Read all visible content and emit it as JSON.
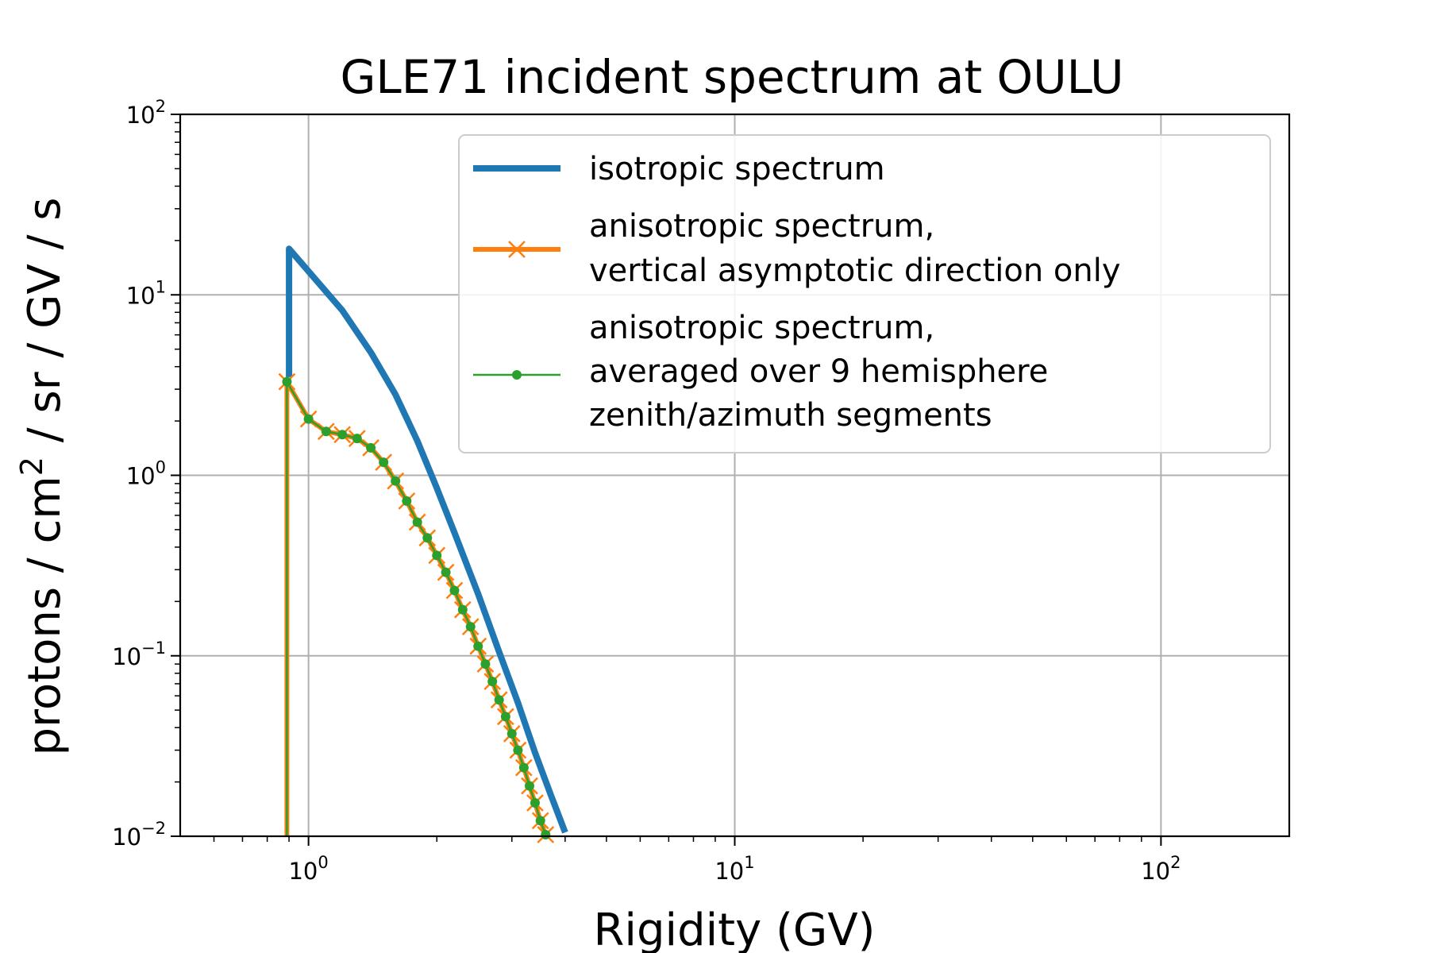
{
  "chart_data": {
    "type": "line",
    "title": "GLE71 incident spectrum at OULU",
    "xlabel": "Rigidity (GV)",
    "ylabel": "protons / cm² / sr / GV / s",
    "x_scale": "log",
    "y_scale": "log",
    "xlim": [
      0.5,
      200
    ],
    "ylim": [
      0.01,
      100
    ],
    "grid": true,
    "legend_position": "top-right",
    "x_ticks": [
      {
        "value": 1,
        "base": "10",
        "exp": "0"
      },
      {
        "value": 10,
        "base": "10",
        "exp": "1"
      },
      {
        "value": 100,
        "base": "10",
        "exp": "2"
      }
    ],
    "y_ticks": [
      {
        "value": 0.01,
        "base": "10",
        "exp": "−2"
      },
      {
        "value": 0.1,
        "base": "10",
        "exp": "−1"
      },
      {
        "value": 1,
        "base": "10",
        "exp": "0"
      },
      {
        "value": 10,
        "base": "10",
        "exp": "1"
      },
      {
        "value": 100,
        "base": "10",
        "exp": "2"
      }
    ],
    "series": [
      {
        "name": "isotropic spectrum",
        "color": "#1f77b4",
        "marker": "none",
        "x": [
          0.9,
          0.9,
          1.0,
          1.2,
          1.4,
          1.6,
          1.8,
          2.0,
          2.2,
          2.5,
          2.8,
          3.1,
          3.4,
          3.7,
          4.0
        ],
        "y": [
          3.5,
          18.0,
          13.5,
          8.2,
          4.8,
          2.8,
          1.55,
          0.85,
          0.48,
          0.22,
          0.105,
          0.055,
          0.029,
          0.017,
          0.0105
        ]
      },
      {
        "name": "anisotropic spectrum,\nvertical asymptotic direction only",
        "color": "#ff7f0e",
        "marker": "x",
        "x": [
          0.89,
          0.89,
          1.0,
          1.1,
          1.2,
          1.3,
          1.4,
          1.5,
          1.6,
          1.7,
          1.8,
          1.9,
          2.0,
          2.1,
          2.2,
          2.3,
          2.4,
          2.5,
          2.6,
          2.7,
          2.8,
          2.9,
          3.0,
          3.1,
          3.2,
          3.3,
          3.4,
          3.5,
          3.6
        ],
        "y": [
          0.01,
          3.3,
          2.05,
          1.75,
          1.68,
          1.6,
          1.42,
          1.18,
          0.93,
          0.72,
          0.55,
          0.45,
          0.36,
          0.29,
          0.23,
          0.18,
          0.145,
          0.113,
          0.09,
          0.072,
          0.057,
          0.046,
          0.037,
          0.03,
          0.024,
          0.019,
          0.0153,
          0.0122,
          0.0102
        ]
      },
      {
        "name": "anisotropic spectrum,\naveraged over 9 hemisphere\nzenith/azimuth segments",
        "color": "#2ca02c",
        "marker": "o",
        "x": [
          0.89,
          0.89,
          1.0,
          1.1,
          1.2,
          1.3,
          1.4,
          1.5,
          1.6,
          1.7,
          1.8,
          1.9,
          2.0,
          2.1,
          2.2,
          2.3,
          2.4,
          2.5,
          2.6,
          2.7,
          2.8,
          2.9,
          3.0,
          3.1,
          3.2,
          3.3,
          3.4,
          3.5,
          3.6
        ],
        "y": [
          0.01,
          3.3,
          2.05,
          1.75,
          1.68,
          1.6,
          1.42,
          1.18,
          0.93,
          0.72,
          0.55,
          0.45,
          0.36,
          0.29,
          0.23,
          0.18,
          0.145,
          0.113,
          0.09,
          0.072,
          0.057,
          0.046,
          0.037,
          0.03,
          0.024,
          0.019,
          0.0153,
          0.0122,
          0.0102
        ]
      }
    ]
  }
}
